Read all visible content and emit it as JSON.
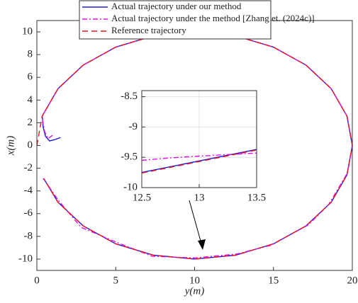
{
  "chart_data": [
    {
      "type": "line",
      "x_label": "y(m)",
      "y_label": "x(m)",
      "xlim": [
        0,
        20
      ],
      "xticks": [
        0,
        5,
        10,
        15,
        20
      ],
      "ylim": [
        -11,
        11
      ],
      "yticks": [
        -10,
        -8,
        -6,
        -4,
        -2,
        0,
        2,
        4,
        6,
        8,
        10
      ],
      "grid": false,
      "legend": "top",
      "series": [
        {
          "name": "Actual trajectory under our method",
          "color": "#1a1adc",
          "style": "solid",
          "x": [
            1.5,
            1.1,
            0.8,
            0.55,
            0.4,
            0.34,
            1.34,
            2.93,
            5,
            7.41,
            10,
            12.59,
            15,
            17.07,
            18.66,
            19.66,
            20,
            19.66,
            18.66,
            17.07,
            15,
            12.59,
            10,
            7.41,
            5,
            2.93,
            1.34,
            0.44
          ],
          "values": [
            0.7,
            0.5,
            0.4,
            0.8,
            1.6,
            2.59,
            5,
            7.07,
            8.66,
            9.66,
            10,
            9.66,
            8.66,
            7.07,
            5,
            2.59,
            0,
            -2.59,
            -5,
            -7.07,
            -8.66,
            -9.66,
            -10,
            -9.66,
            -8.66,
            -7.07,
            -5,
            -2.92
          ]
        },
        {
          "name": "Actual trajectory under the method [Zhang et. (2024c)]",
          "color": "#e010e0",
          "style": "dashdot",
          "x": [
            1.0,
            0.7,
            0.5,
            0.38,
            0.34,
            1.34,
            2.93,
            5,
            7.41,
            10,
            12.59,
            15,
            17.07,
            18.66,
            19.66,
            20,
            19.7,
            18.5,
            17.2,
            14.8,
            12.7,
            10,
            7.3,
            5.1,
            2.8,
            1.4,
            0.4
          ],
          "values": [
            0.9,
            0.6,
            1.2,
            2.1,
            2.59,
            5,
            7.07,
            8.66,
            9.66,
            10,
            9.66,
            8.66,
            7.07,
            5,
            2.59,
            0,
            -2.4,
            -5.2,
            -7.0,
            -8.8,
            -9.55,
            -9.9,
            -9.75,
            -8.55,
            -7.2,
            -4.9,
            -2.9
          ]
        },
        {
          "name": "Reference trajectory",
          "color": "#e8141e",
          "style": "dashed",
          "x": [
            0,
            0.34,
            1.34,
            2.93,
            5,
            7.41,
            10,
            12.59,
            15,
            17.07,
            18.66,
            19.66,
            20,
            19.66,
            18.66,
            17.07,
            15,
            12.59,
            10,
            7.41,
            5,
            2.93,
            1.34,
            0.44
          ],
          "values": [
            0,
            2.59,
            5,
            7.07,
            8.66,
            9.66,
            10,
            9.66,
            8.66,
            7.07,
            5,
            2.59,
            0,
            -2.59,
            -5,
            -7.07,
            -8.66,
            -9.66,
            -10,
            -9.66,
            -8.66,
            -7.07,
            -5,
            -2.92
          ]
        }
      ]
    },
    {
      "type": "line",
      "xlim": [
        12.5,
        13.5
      ],
      "xticks": [
        12.5,
        13,
        13.5
      ],
      "ylim": [
        -10,
        -8.4
      ],
      "yticks": [
        -10,
        -9.5,
        -9,
        -8.5
      ],
      "grid": true,
      "series": [
        {
          "color": "#1a1adc",
          "style": "solid",
          "x": [
            12.5,
            13.5
          ],
          "values": [
            -9.75,
            -9.37
          ]
        },
        {
          "color": "#e010e0",
          "style": "dashdot",
          "x": [
            12.5,
            12.75,
            13,
            13.25,
            13.5
          ],
          "values": [
            -9.55,
            -9.51,
            -9.48,
            -9.455,
            -9.43
          ]
        },
        {
          "color": "#e8141e",
          "style": "dashed",
          "x": [
            12.5,
            13.5
          ],
          "values": [
            -9.76,
            -9.38
          ]
        }
      ]
    }
  ]
}
